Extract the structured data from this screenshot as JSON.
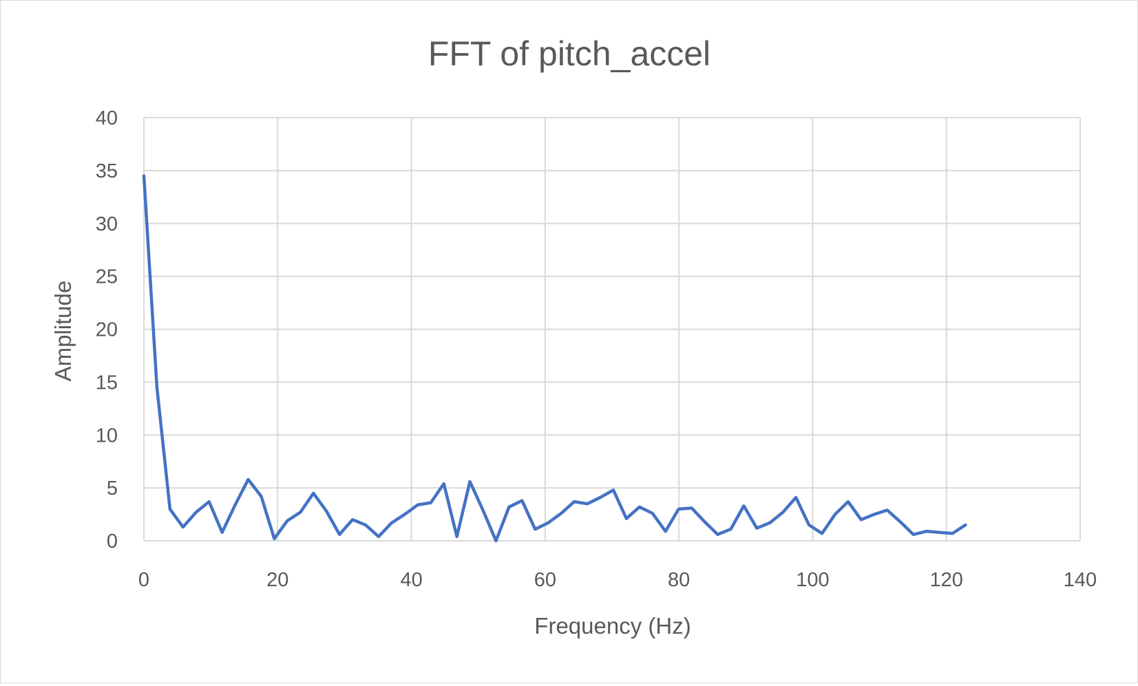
{
  "chart_data": {
    "type": "line",
    "title": "FFT of pitch_accel",
    "xlabel": "Frequency (Hz)",
    "ylabel": "Amplitude",
    "xlim": [
      0,
      140
    ],
    "ylim": [
      0,
      40
    ],
    "xticks": [
      0,
      20,
      40,
      60,
      80,
      100,
      120,
      140
    ],
    "yticks": [
      0,
      5,
      10,
      15,
      20,
      25,
      30,
      35,
      40
    ],
    "grid": true,
    "legend": "none",
    "series": [
      {
        "color": "#4472c4",
        "x": [
          0,
          1.95,
          3.9,
          5.85,
          7.8,
          9.75,
          11.7,
          13.65,
          15.6,
          17.55,
          19.5,
          21.45,
          23.4,
          25.35,
          27.3,
          29.25,
          31.2,
          33.15,
          35.1,
          37.05,
          39.0,
          40.95,
          42.9,
          44.85,
          46.8,
          48.75,
          50.7,
          52.65,
          54.6,
          56.55,
          58.5,
          60.45,
          62.4,
          64.35,
          66.3,
          68.25,
          70.2,
          72.15,
          74.1,
          76.05,
          78.0,
          79.95,
          81.9,
          83.85,
          85.8,
          87.75,
          89.7,
          91.65,
          93.6,
          95.55,
          97.5,
          99.45,
          101.4,
          103.35,
          105.3,
          107.25,
          109.2,
          111.15,
          113.1,
          115.05,
          117.0,
          118.95,
          120.9,
          122.85
        ],
        "y": [
          34.5,
          14.5,
          3.0,
          1.3,
          2.7,
          3.7,
          0.8,
          3.4,
          5.8,
          4.2,
          0.2,
          1.9,
          2.7,
          4.5,
          2.8,
          0.6,
          2.0,
          1.5,
          0.4,
          1.7,
          2.5,
          3.4,
          3.6,
          5.4,
          0.4,
          5.6,
          2.9,
          0.0,
          3.2,
          3.8,
          1.1,
          1.7,
          2.6,
          3.7,
          3.5,
          4.1,
          4.8,
          2.1,
          3.2,
          2.6,
          0.9,
          3.0,
          3.1,
          1.8,
          0.6,
          1.1,
          3.3,
          1.2,
          1.7,
          2.7,
          4.1,
          1.5,
          0.7,
          2.5,
          3.7,
          2.0,
          2.5,
          2.9,
          1.8,
          0.6,
          0.9,
          0.8,
          0.7,
          1.5
        ]
      }
    ]
  }
}
